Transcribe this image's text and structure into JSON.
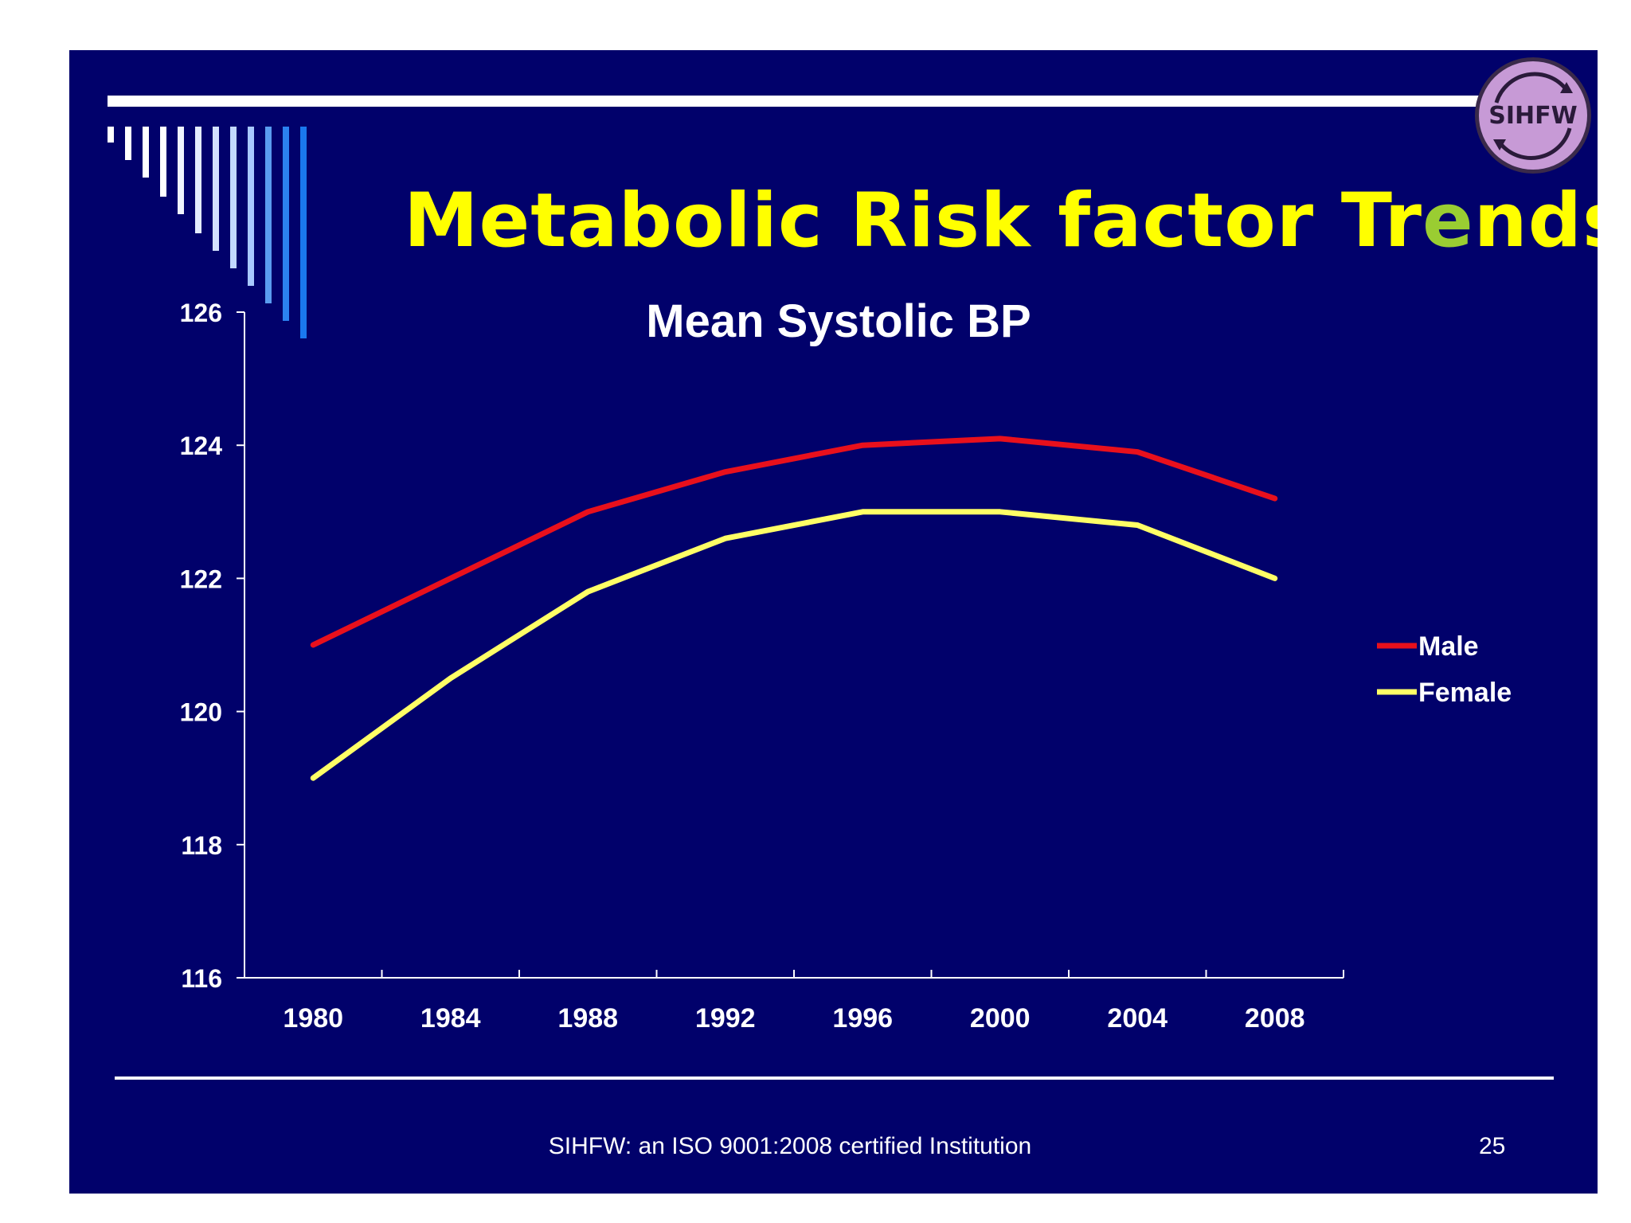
{
  "slide": {
    "title_pre": "Metabolic Risk factor Tr",
    "title_hl": "e",
    "title_post": "nds",
    "footer": "SIHFW: an ISO 9001:2008 certified Institution",
    "page_number": "25",
    "logo_text": "SIHFW"
  },
  "colors": {
    "background": "#01016b",
    "title": "#ffff00",
    "male": "#e8101c",
    "female": "#ffff66",
    "logo": "#c79ad6"
  },
  "chart_data": {
    "type": "line",
    "title": "Mean Systolic BP",
    "xlabel": "",
    "ylabel": "",
    "categories": [
      "1980",
      "1984",
      "1988",
      "1992",
      "1996",
      "2000",
      "2004",
      "2008"
    ],
    "ylim": [
      116,
      126
    ],
    "yticks": [
      116,
      118,
      120,
      122,
      124,
      126
    ],
    "series": [
      {
        "name": "Male",
        "values": [
          121.0,
          122.0,
          123.0,
          123.6,
          124.0,
          124.1,
          123.9,
          123.2
        ]
      },
      {
        "name": "Female",
        "values": [
          119.0,
          120.5,
          121.8,
          122.6,
          123.0,
          123.0,
          122.8,
          122.0
        ]
      }
    ],
    "legend": "right"
  }
}
